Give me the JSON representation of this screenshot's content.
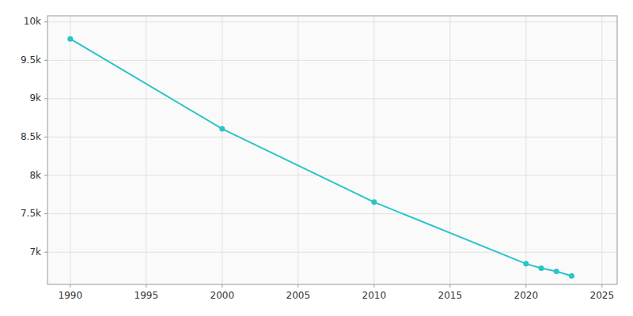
{
  "chart_data": {
    "type": "line",
    "x": [
      1990,
      2000,
      2010,
      2020,
      2021,
      2022,
      2023
    ],
    "values": [
      9780,
      8607,
      7652,
      6849,
      6791,
      6749,
      6691
    ],
    "color": "#2ac4c8",
    "marker": "circle",
    "xlim": [
      1988.5,
      2026.0
    ],
    "ylim": [
      6580,
      10080
    ],
    "xticks": [
      1990,
      1995,
      2000,
      2005,
      2010,
      2015,
      2020,
      2025
    ],
    "yticks": [
      {
        "value": 7000,
        "label": "7k"
      },
      {
        "value": 7500,
        "label": "7.5k"
      },
      {
        "value": 8000,
        "label": "8k"
      },
      {
        "value": 8500,
        "label": "8.5k"
      },
      {
        "value": 9000,
        "label": "9k"
      },
      {
        "value": 9500,
        "label": "9.5k"
      },
      {
        "value": 10000,
        "label": "10k"
      }
    ],
    "grid": true
  }
}
